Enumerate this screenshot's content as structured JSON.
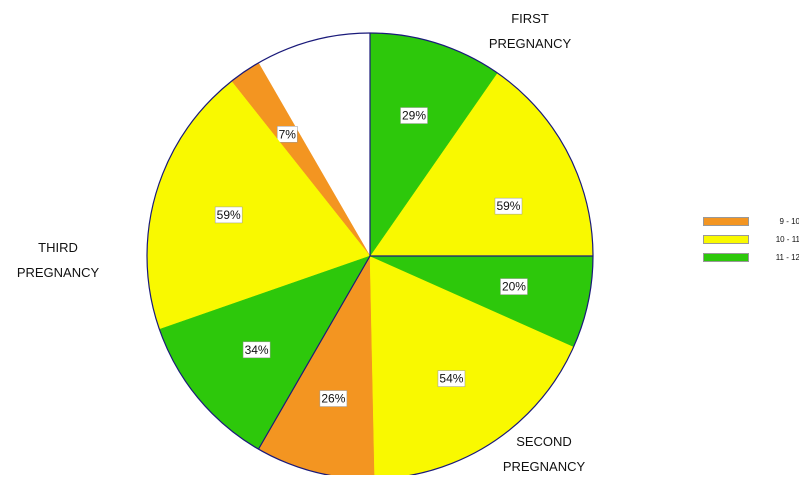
{
  "chart_data": {
    "type": "pie",
    "title": "",
    "groups": [
      {
        "name": "FIRST PREGNANCY",
        "label_lines": [
          "FIRST",
          "PREGNANCY"
        ],
        "slices": [
          {
            "category": "9 - 10",
            "value": 12
          },
          {
            "category": "10 - 11",
            "value": 59
          },
          {
            "category": "11 - 12",
            "value": 29
          }
        ]
      },
      {
        "name": "SECOND PREGNANCY",
        "label_lines": [
          "SECOND",
          "PREGNANCY"
        ],
        "slices": [
          {
            "category": "9 - 10",
            "value": 26
          },
          {
            "category": "10 - 11",
            "value": 54
          },
          {
            "category": "11 - 12",
            "value": 20
          }
        ]
      },
      {
        "name": "THIRD PREGNANCY",
        "label_lines": [
          "THIRD",
          "PREGNANCY"
        ],
        "slices": [
          {
            "category": "9 - 10",
            "value": 7
          },
          {
            "category": "10 - 11",
            "value": 59
          },
          {
            "category": "11 - 12",
            "value": 34
          }
        ]
      }
    ],
    "legend": {
      "position": "right",
      "items": [
        {
          "label": "9 - 10",
          "color": "#f39521"
        },
        {
          "label": "10 - 11",
          "color": "#f9f900"
        },
        {
          "label": "11 - 12",
          "color": "#2dc80b"
        }
      ]
    }
  }
}
